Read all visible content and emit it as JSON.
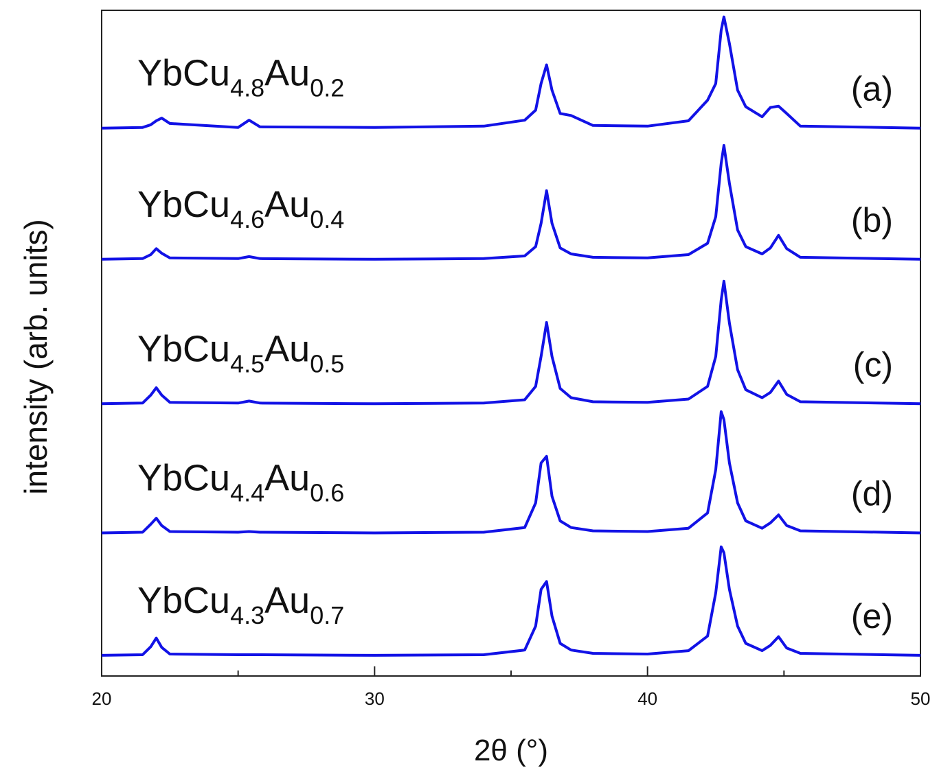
{
  "chart_data": {
    "type": "line",
    "x_label": "2θ  (°)",
    "y_label": "intensity  (arb. units)",
    "xlim": [
      20,
      50
    ],
    "xticks": [
      20,
      30,
      40,
      50
    ],
    "x_minor_ticks": [
      25,
      35,
      45
    ],
    "ylim": [
      0,
      100
    ],
    "x": [
      20,
      21.5,
      21.8,
      22.0,
      22.2,
      22.5,
      25,
      25.4,
      25.8,
      30,
      34,
      35.5,
      35.9,
      36.1,
      36.3,
      36.5,
      36.8,
      37.2,
      38,
      40,
      41.5,
      42.2,
      42.5,
      42.7,
      42.8,
      43.0,
      43.3,
      43.6,
      44.2,
      44.5,
      44.8,
      45.1,
      45.6,
      50
    ],
    "series": [
      {
        "name": [
          "YbCu",
          "4.8",
          "Au",
          "0.2"
        ],
        "label": "(a)",
        "color": "#1212e6",
        "values": [
          82.3,
          82.4,
          82.8,
          83.4,
          83.8,
          83.0,
          82.4,
          83.5,
          82.5,
          82.4,
          82.6,
          83.5,
          85,
          89,
          91.8,
          88,
          84.5,
          84.2,
          82.7,
          82.6,
          83.4,
          86.5,
          89,
          97,
          99.0,
          95,
          88,
          85.5,
          84,
          85.4,
          85.6,
          84.5,
          82.6,
          82.3
        ]
      },
      {
        "name": [
          "YbCu",
          "4.6",
          "Au",
          "0.4"
        ],
        "label": "(b)",
        "color": "#1212e6",
        "values": [
          62.6,
          62.7,
          63.3,
          64.2,
          63.5,
          62.8,
          62.7,
          63.0,
          62.7,
          62.6,
          62.7,
          63.1,
          64.5,
          68,
          72.9,
          68,
          64.3,
          63.4,
          62.9,
          62.8,
          63.3,
          65,
          69,
          77,
          79.7,
          74,
          67,
          64.5,
          63.4,
          64.3,
          66.2,
          64.2,
          62.9,
          62.6
        ]
      },
      {
        "name": [
          "YbCu",
          "4.5",
          "Au",
          "0.5"
        ],
        "label": "(c)",
        "color": "#1212e6",
        "values": [
          40.9,
          41.0,
          42.2,
          43.3,
          42.2,
          41.1,
          41.0,
          41.3,
          41.0,
          40.9,
          41.0,
          41.5,
          43.5,
          48,
          53.1,
          48,
          43.2,
          41.8,
          41.2,
          41.1,
          41.6,
          43.5,
          48,
          56.5,
          59.3,
          53,
          46,
          43,
          41.8,
          42.6,
          44.3,
          42.3,
          41.2,
          40.9
        ]
      },
      {
        "name": [
          "YbCu",
          "4.4",
          "Au",
          "0.6"
        ],
        "label": "(d)",
        "color": "#1212e6",
        "values": [
          21.5,
          21.6,
          22.8,
          23.7,
          22.6,
          21.7,
          21.6,
          21.7,
          21.6,
          21.5,
          21.6,
          22.3,
          26,
          32,
          33,
          27,
          23.3,
          22.3,
          21.8,
          21.7,
          22.2,
          24.5,
          31,
          39.7,
          38.5,
          32,
          26,
          23.3,
          22.2,
          23,
          24.2,
          22.6,
          21.8,
          21.5
        ]
      },
      {
        "name": [
          "YbCu",
          "4.3",
          "Au",
          "0.7"
        ],
        "label": "(e)",
        "color": "#1212e6",
        "values": [
          3.1,
          3.2,
          4.4,
          5.7,
          4.3,
          3.3,
          3.2,
          3.2,
          3.2,
          3.1,
          3.2,
          3.9,
          7.5,
          13,
          14.2,
          9,
          4.9,
          3.9,
          3.4,
          3.3,
          3.8,
          6,
          12.5,
          19.4,
          18.5,
          13,
          7.5,
          4.9,
          3.8,
          4.6,
          5.9,
          4.2,
          3.4,
          3.1
        ]
      }
    ]
  }
}
